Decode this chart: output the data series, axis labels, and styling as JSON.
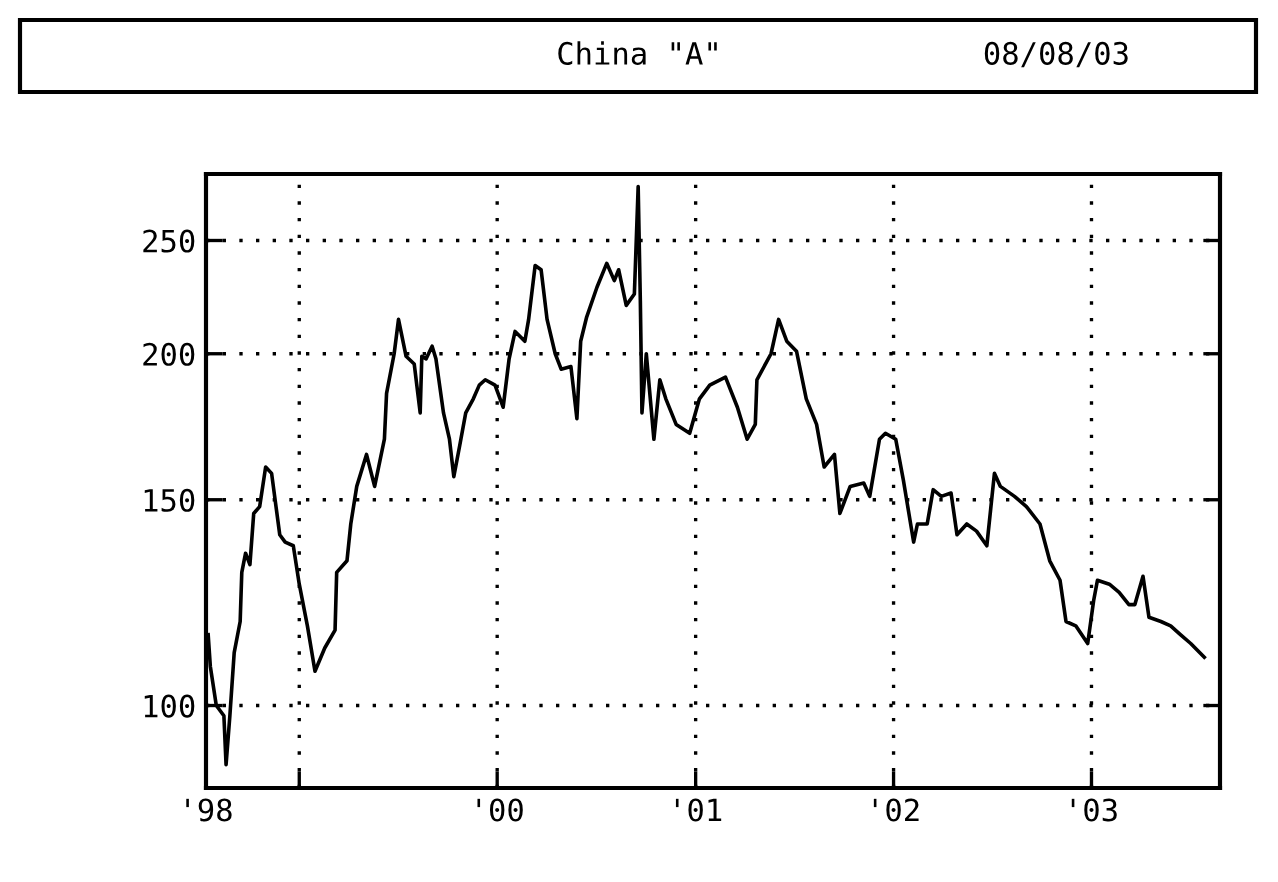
{
  "chart_data": {
    "type": "line",
    "title": "China \"A\"",
    "subtitle": "08/08/03",
    "log": "y",
    "grid": true,
    "line_style": "solid",
    "xlim": [
      "1998-07-13",
      "2003-08-26"
    ],
    "xticks": [
      {
        "value": "1998-07-13",
        "label": "'98"
      },
      {
        "value": "1999-01-01",
        "label": null
      },
      {
        "value": "2000-01-01",
        "label": "'00"
      },
      {
        "value": "2001-01-01",
        "label": "'01"
      },
      {
        "value": "2002-01-01",
        "label": "'02"
      },
      {
        "value": "2003-01-01",
        "label": "'03"
      }
    ],
    "ylim": [
      85,
      285
    ],
    "yticks": [
      100,
      150,
      200,
      250
    ],
    "series": [
      {
        "color": "#000000",
        "x": [
          "1998-07-17",
          "1998-07-21",
          "1998-08-01",
          "1998-08-15",
          "1998-08-19",
          "1998-08-26",
          "1998-09-03",
          "1998-09-14",
          "1998-09-17",
          "1998-09-24",
          "1998-10-02",
          "1998-10-09",
          "1998-10-20",
          "1998-10-31",
          "1998-11-11",
          "1998-11-26",
          "1998-12-06",
          "1998-12-21",
          "1999-01-01",
          "1999-01-16",
          "1999-01-30",
          "1999-02-17",
          "1999-03-08",
          "1999-03-11",
          "1999-03-30",
          "1999-04-06",
          "1999-04-17",
          "1999-05-05",
          "1999-05-20",
          "1999-06-07",
          "1999-06-11",
          "1999-06-25",
          "1999-07-03",
          "1999-07-17",
          "1999-08-01",
          "1999-08-12",
          "1999-08-15",
          "1999-08-23",
          "1999-09-03",
          "1999-09-10",
          "1999-09-24",
          "1999-10-05",
          "1999-10-13",
          "1999-10-24",
          "1999-11-04",
          "1999-11-18",
          "1999-11-29",
          "1999-12-10",
          "1999-12-28",
          "2000-01-12",
          "2000-01-23",
          "2000-02-03",
          "2000-02-21",
          "2000-02-28",
          "2000-03-11",
          "2000-03-22",
          "2000-04-02",
          "2000-04-17",
          "2000-04-28",
          "2000-05-16",
          "2000-05-27",
          "2000-06-03",
          "2000-06-14",
          "2000-07-03",
          "2000-07-21",
          "2000-08-04",
          "2000-08-12",
          "2000-08-26",
          "2000-09-10",
          "2000-09-17",
          "2000-09-21",
          "2000-09-24",
          "2000-10-02",
          "2000-10-16",
          "2000-10-27",
          "2000-11-07",
          "2000-11-26",
          "2000-12-21",
          "2001-01-08",
          "2001-01-27",
          "2001-02-25",
          "2001-03-19",
          "2001-04-06",
          "2001-04-21",
          "2001-04-24",
          "2001-05-20",
          "2001-06-03",
          "2001-06-18",
          "2001-07-06",
          "2001-07-24",
          "2001-08-12",
          "2001-08-26",
          "2001-09-14",
          "2001-09-24",
          "2001-10-13",
          "2001-11-07",
          "2001-11-18",
          "2001-12-06",
          "2001-12-17",
          "2002-01-05",
          "2002-01-19",
          "2002-02-07",
          "2002-02-14",
          "2002-03-04",
          "2002-03-15",
          "2002-03-30",
          "2002-04-17",
          "2002-04-28",
          "2002-05-16",
          "2002-06-03",
          "2002-06-22",
          "2002-07-06",
          "2002-07-17",
          "2002-08-12",
          "2002-09-03",
          "2002-09-28",
          "2002-10-16",
          "2002-11-04",
          "2002-11-15",
          "2002-12-03",
          "2002-12-25",
          "2003-01-05",
          "2003-01-12",
          "2003-02-03",
          "2003-02-21",
          "2003-03-11",
          "2003-03-22",
          "2003-04-06",
          "2003-04-17",
          "2003-05-09",
          "2003-05-27",
          "2003-06-14",
          "2003-07-03",
          "2003-07-28"
        ],
        "values": [
          115,
          108,
          100,
          98,
          89,
          98,
          111,
          118,
          130,
          135,
          132,
          146,
          148,
          160,
          158,
          140,
          138,
          137,
          127,
          117,
          107,
          112,
          116,
          130,
          133,
          143,
          154,
          164,
          154,
          169,
          185,
          200,
          214,
          199,
          196,
          178,
          199,
          198,
          203,
          198,
          178,
          169,
          157,
          167,
          178,
          183,
          188,
          190,
          188,
          180,
          198,
          209,
          205,
          214,
          238,
          236,
          214,
          200,
          194,
          195,
          176,
          205,
          215,
          228,
          239,
          231,
          236,
          220,
          225,
          278,
          222,
          178,
          200,
          169,
          190,
          183,
          174,
          171,
          183,
          188,
          191,
          180,
          169,
          174,
          190,
          200,
          214,
          205,
          201,
          183,
          174,
          160,
          164,
          146,
          154,
          155,
          151,
          169,
          171,
          169,
          156,
          138,
          143,
          143,
          153,
          151,
          152,
          140,
          143,
          141,
          137,
          158,
          154,
          151,
          148,
          143,
          133,
          128,
          118,
          117,
          113,
          123,
          128,
          127,
          125,
          122,
          122,
          129,
          119,
          118,
          117,
          115,
          113,
          110
        ]
      }
    ]
  }
}
